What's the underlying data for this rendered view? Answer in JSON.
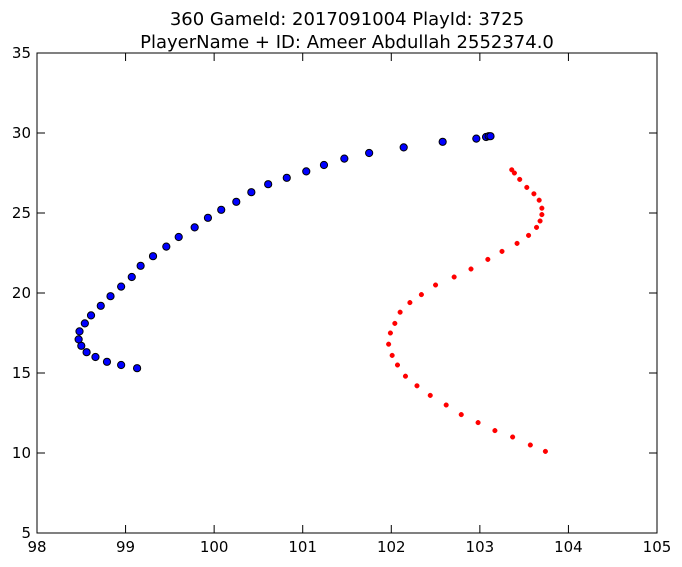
{
  "chart_data": {
    "type": "scatter",
    "title": "360 GameId: 2017091004 PlayId: 3725",
    "subtitle": "PlayerName + ID: Ameer Abdullah 2552374.0",
    "xlabel": "",
    "ylabel": "",
    "xlim": [
      98,
      105
    ],
    "ylim": [
      5,
      35
    ],
    "xticks": [
      "98",
      "99",
      "100",
      "101",
      "102",
      "103",
      "104",
      "105"
    ],
    "yticks": [
      "5",
      "10",
      "15",
      "20",
      "25",
      "30",
      "35"
    ],
    "grid": false,
    "series": [
      {
        "color": "#0000ff",
        "marker": "large-circle-black-edge",
        "points": [
          [
            99.13,
            15.3
          ],
          [
            98.95,
            15.5
          ],
          [
            98.79,
            15.7
          ],
          [
            98.66,
            16.0
          ],
          [
            98.56,
            16.3
          ],
          [
            98.5,
            16.7
          ],
          [
            98.47,
            17.1
          ],
          [
            98.48,
            17.6
          ],
          [
            98.54,
            18.1
          ],
          [
            98.61,
            18.6
          ],
          [
            98.72,
            19.2
          ],
          [
            98.83,
            19.8
          ],
          [
            98.95,
            20.4
          ],
          [
            99.07,
            21.0
          ],
          [
            99.17,
            21.7
          ],
          [
            99.31,
            22.3
          ],
          [
            99.46,
            22.9
          ],
          [
            99.6,
            23.5
          ],
          [
            99.78,
            24.1
          ],
          [
            99.93,
            24.7
          ],
          [
            100.08,
            25.2
          ],
          [
            100.25,
            25.7
          ],
          [
            100.42,
            26.3
          ],
          [
            100.61,
            26.8
          ],
          [
            100.82,
            27.2
          ],
          [
            101.04,
            27.6
          ],
          [
            101.24,
            28.0
          ],
          [
            101.47,
            28.4
          ],
          [
            101.75,
            28.75
          ],
          [
            102.14,
            29.1
          ],
          [
            102.58,
            29.45
          ],
          [
            102.96,
            29.65
          ],
          [
            103.07,
            29.75
          ],
          [
            103.1,
            29.8
          ],
          [
            103.12,
            29.8
          ]
        ]
      },
      {
        "color": "#ff0000",
        "marker": "small-dot",
        "points": [
          [
            103.74,
            10.1
          ],
          [
            103.57,
            10.5
          ],
          [
            103.37,
            11.0
          ],
          [
            103.17,
            11.4
          ],
          [
            102.98,
            11.9
          ],
          [
            102.79,
            12.4
          ],
          [
            102.62,
            13.0
          ],
          [
            102.44,
            13.6
          ],
          [
            102.29,
            14.2
          ],
          [
            102.16,
            14.8
          ],
          [
            102.07,
            15.5
          ],
          [
            102.01,
            16.1
          ],
          [
            101.97,
            16.8
          ],
          [
            101.99,
            17.5
          ],
          [
            102.04,
            18.1
          ],
          [
            102.1,
            18.8
          ],
          [
            102.21,
            19.4
          ],
          [
            102.34,
            19.9
          ],
          [
            102.5,
            20.5
          ],
          [
            102.71,
            21.0
          ],
          [
            102.9,
            21.5
          ],
          [
            103.09,
            22.1
          ],
          [
            103.25,
            22.6
          ],
          [
            103.42,
            23.1
          ],
          [
            103.55,
            23.6
          ],
          [
            103.64,
            24.1
          ],
          [
            103.68,
            24.5
          ],
          [
            103.7,
            24.9
          ],
          [
            103.7,
            25.3
          ],
          [
            103.67,
            25.8
          ],
          [
            103.61,
            26.2
          ],
          [
            103.53,
            26.6
          ],
          [
            103.45,
            27.1
          ],
          [
            103.39,
            27.5
          ],
          [
            103.36,
            27.7
          ]
        ]
      }
    ]
  }
}
